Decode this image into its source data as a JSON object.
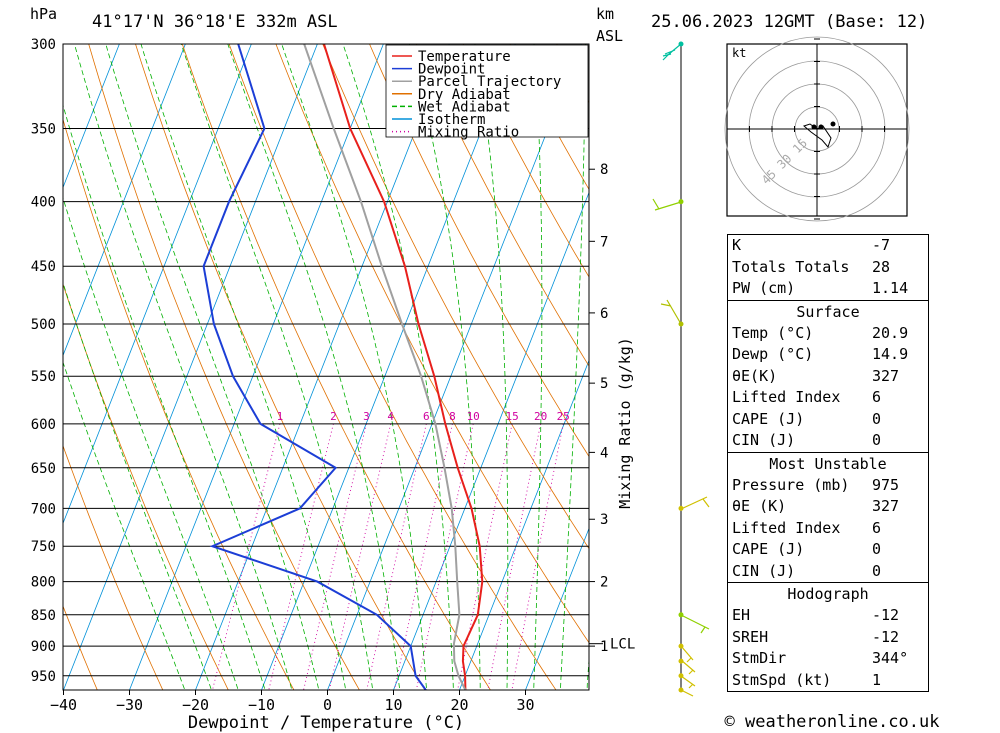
{
  "header": {
    "hpa_label": "hPa",
    "location": "41°17'N 36°18'E 332m ASL",
    "km_label": "km",
    "asl_label": "ASL",
    "datetime": "25.06.2023 12GMT (Base: 12)"
  },
  "footer": {
    "copyright": "© weatheronline.co.uk"
  },
  "hodograph": {
    "unit_label": "kt",
    "ring_labels": [
      "15",
      "30",
      "45"
    ]
  },
  "indices": [
    {
      "label": "K",
      "value": "-7"
    },
    {
      "label": "Totals Totals",
      "value": "28"
    },
    {
      "label": "PW (cm)",
      "value": "1.14"
    }
  ],
  "surface": {
    "title": "Surface",
    "rows": [
      {
        "label": "Temp (°C)",
        "value": "20.9"
      },
      {
        "label": "Dewp (°C)",
        "value": "14.9"
      },
      {
        "label": "θE(K)",
        "value": "327"
      },
      {
        "label": "Lifted Index",
        "value": "6"
      },
      {
        "label": "CAPE (J)",
        "value": "0"
      },
      {
        "label": "CIN (J)",
        "value": "0"
      }
    ]
  },
  "most_unstable": {
    "title": "Most Unstable",
    "rows": [
      {
        "label": "Pressure (mb)",
        "value": "975"
      },
      {
        "label": "θE (K)",
        "value": "327"
      },
      {
        "label": "Lifted Index",
        "value": "6"
      },
      {
        "label": "CAPE (J)",
        "value": "0"
      },
      {
        "label": "CIN (J)",
        "value": "0"
      }
    ]
  },
  "hodo_table": {
    "title": "Hodograph",
    "rows": [
      {
        "label": "EH",
        "value": "-12"
      },
      {
        "label": "SREH",
        "value": "-12"
      },
      {
        "label": "StmDir",
        "value": "344°"
      },
      {
        "label": "StmSpd (kt)",
        "value": "1"
      }
    ]
  },
  "chart_data": {
    "type": "line",
    "title": "Skew-T log-P diagram",
    "xlabel": "Dewpoint / Temperature (°C)",
    "ylabel": "hPa",
    "y2label": "Mixing Ratio (g/kg)",
    "xlim": [
      -40,
      40
    ],
    "ylim": [
      300,
      975
    ],
    "x_ticks": [
      -40,
      -30,
      -20,
      -10,
      0,
      10,
      20,
      30
    ],
    "pressure_levels": [
      300,
      350,
      400,
      450,
      500,
      550,
      600,
      650,
      700,
      750,
      800,
      850,
      900,
      950
    ],
    "km_ticks": [
      {
        "label": "8",
        "p": 377
      },
      {
        "label": "7",
        "p": 430
      },
      {
        "label": "6",
        "p": 490
      },
      {
        "label": "5",
        "p": 557
      },
      {
        "label": "4",
        "p": 632
      },
      {
        "label": "3",
        "p": 714
      },
      {
        "label": "2",
        "p": 800
      },
      {
        "label": "1",
        "p": 900
      }
    ],
    "lcl": {
      "label": "LCL",
      "p": 896
    },
    "mixing_ratio_labels": [
      "1",
      "2",
      "3",
      "4",
      "6",
      "8",
      "10",
      "15",
      "20",
      "25"
    ],
    "legend": {
      "placement": "top-center",
      "entries": [
        {
          "name": "Temperature",
          "color": "#e8201c"
        },
        {
          "name": "Dewpoint",
          "color": "#1c3ed6"
        },
        {
          "name": "Parcel Trajectory",
          "color": "#a0a0a0"
        },
        {
          "name": "Dry Adiabat",
          "color": "#e07000"
        },
        {
          "name": "Wet Adiabat",
          "color": "#00b000"
        },
        {
          "name": "Isotherm",
          "color": "#0090d8"
        },
        {
          "name": "Mixing Ratio",
          "color": "#d000a0"
        }
      ]
    },
    "series": [
      {
        "name": "Temperature",
        "points": [
          [
            975,
            20.9
          ],
          [
            950,
            20
          ],
          [
            925,
            18.8
          ],
          [
            900,
            18
          ],
          [
            850,
            18.3
          ],
          [
            800,
            17
          ],
          [
            750,
            14.5
          ],
          [
            700,
            11
          ],
          [
            650,
            6.5
          ],
          [
            600,
            2
          ],
          [
            550,
            -2.5
          ],
          [
            500,
            -8
          ],
          [
            450,
            -13.5
          ],
          [
            400,
            -20.5
          ],
          [
            350,
            -30
          ],
          [
            300,
            -39
          ]
        ]
      },
      {
        "name": "Dewpoint",
        "points": [
          [
            975,
            14.9
          ],
          [
            950,
            12.5
          ],
          [
            900,
            10
          ],
          [
            850,
            3
          ],
          [
            800,
            -8
          ],
          [
            750,
            -26
          ],
          [
            700,
            -15
          ],
          [
            650,
            -12
          ],
          [
            600,
            -26
          ],
          [
            550,
            -33
          ],
          [
            500,
            -39
          ],
          [
            450,
            -44
          ],
          [
            400,
            -44
          ],
          [
            350,
            -43
          ],
          [
            300,
            -52
          ]
        ]
      },
      {
        "name": "Parcel Trajectory",
        "points": [
          [
            975,
            20.9
          ],
          [
            950,
            19
          ],
          [
            925,
            17.5
          ],
          [
            896,
            16.4
          ],
          [
            850,
            15.5
          ],
          [
            800,
            13.2
          ],
          [
            750,
            10.8
          ],
          [
            700,
            8
          ],
          [
            650,
            4.5
          ],
          [
            600,
            0.5
          ],
          [
            550,
            -4.5
          ],
          [
            500,
            -10.5
          ],
          [
            450,
            -17
          ],
          [
            400,
            -24
          ],
          [
            350,
            -32.5
          ],
          [
            300,
            -42
          ]
        ]
      }
    ]
  }
}
